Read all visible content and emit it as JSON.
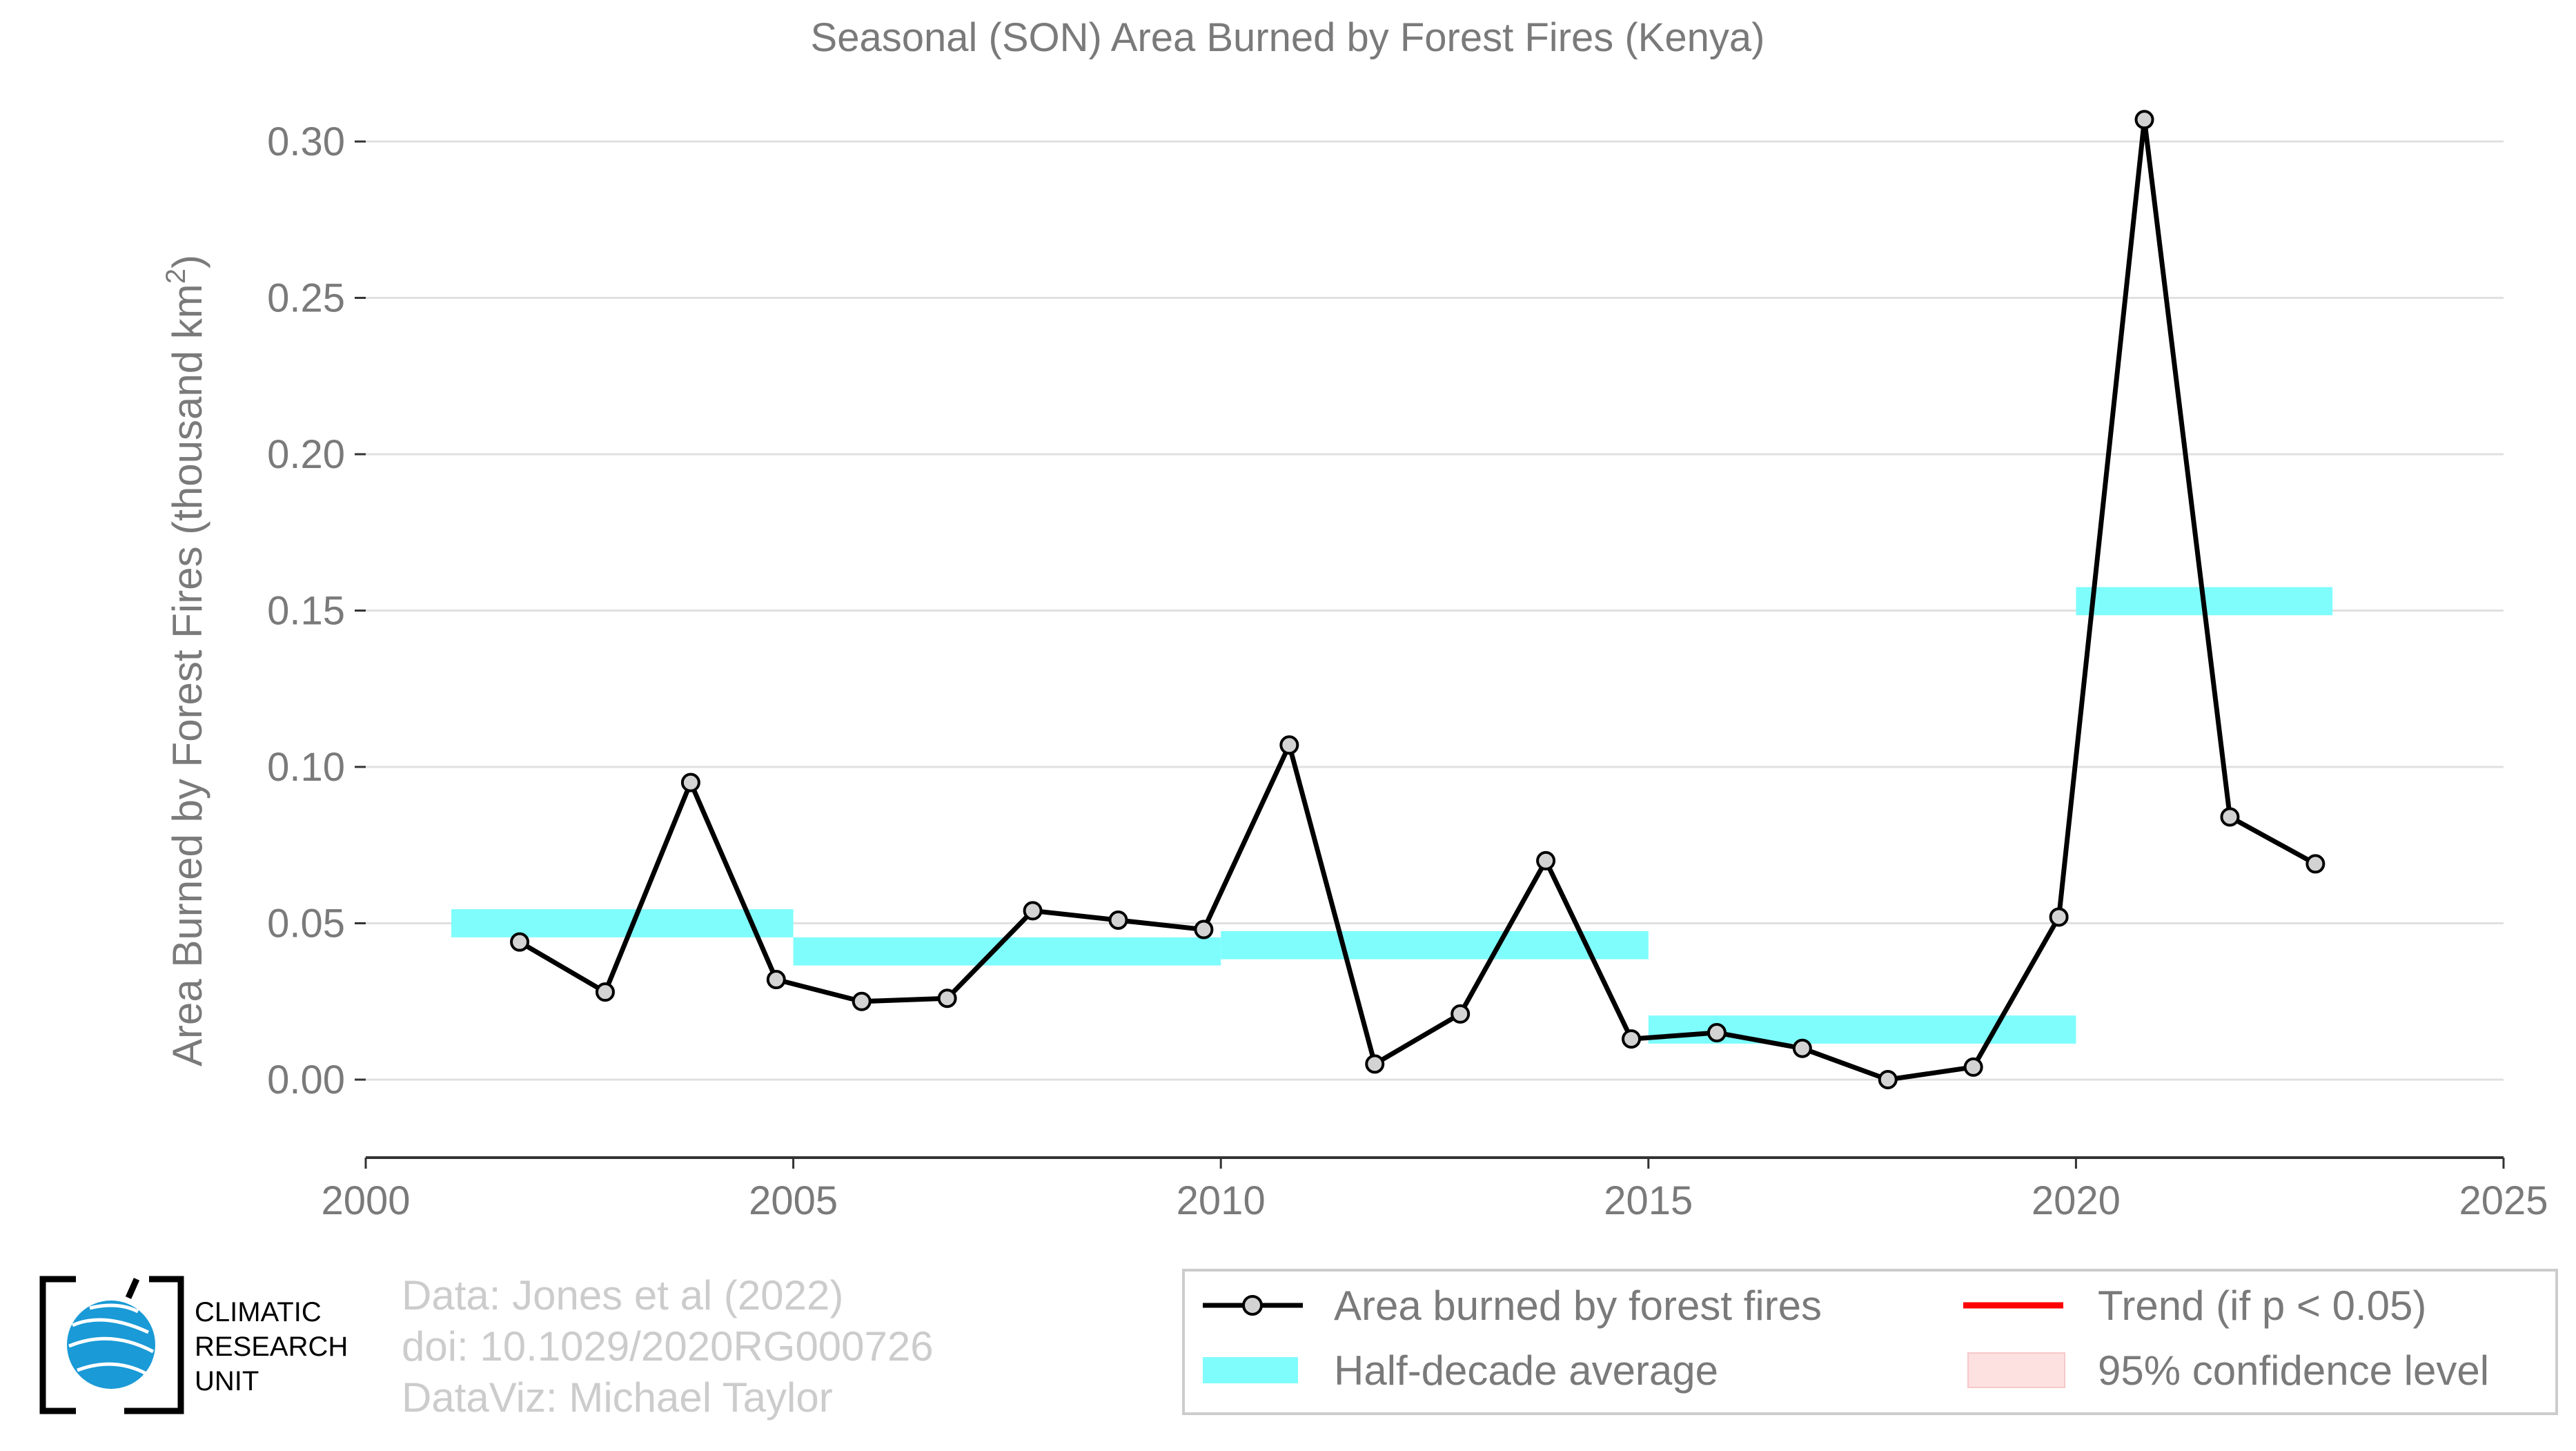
{
  "chart_data": {
    "type": "line",
    "title": "Seasonal (SON) Area Burned by Forest Fires (Kenya)",
    "ylabel": "Area Burned by Forest Fires (thousand km",
    "ylabel_sup": "2",
    "ylabel_close": ")",
    "xlabel": "",
    "xlim": [
      2000,
      2025
    ],
    "ylim": [
      -0.025,
      0.31
    ],
    "x_ticks": [
      "2000",
      "2005",
      "2010",
      "2015",
      "2020",
      "2025"
    ],
    "y_ticks": [
      "0.00",
      "0.05",
      "0.10",
      "0.15",
      "0.20",
      "0.25",
      "0.30"
    ],
    "grid": true,
    "series": [
      {
        "name": "Area burned by forest fires",
        "x": [
          2001.8,
          2002.8,
          2003.8,
          2004.8,
          2005.8,
          2006.8,
          2007.8,
          2008.8,
          2009.8,
          2010.8,
          2011.8,
          2012.8,
          2013.8,
          2014.8,
          2015.8,
          2016.8,
          2017.8,
          2018.8,
          2019.8,
          2020.8,
          2021.8,
          2022.8
        ],
        "values": [
          0.044,
          0.028,
          0.095,
          0.032,
          0.025,
          0.026,
          0.054,
          0.051,
          0.048,
          0.107,
          0.005,
          0.021,
          0.07,
          0.013,
          0.015,
          0.01,
          0.0,
          0.004,
          0.052,
          0.307,
          0.084,
          0.069
        ],
        "color": "#000000"
      }
    ],
    "half_decade_average": [
      {
        "start": 2001,
        "end": 2005,
        "value": 0.05
      },
      {
        "start": 2005,
        "end": 2010,
        "value": 0.041
      },
      {
        "start": 2010,
        "end": 2015,
        "value": 0.043
      },
      {
        "start": 2015,
        "end": 2020,
        "value": 0.016
      },
      {
        "start": 2020,
        "end": 2023,
        "value": 0.153
      }
    ],
    "legend": {
      "placement": "bottom-right",
      "items": [
        "Area burned by forest fires",
        "Half-decade average",
        "Trend (if p < 0.05)",
        "95% confidence level"
      ]
    },
    "colors": {
      "line": "#000000",
      "marker_fill": "#d3d3d3",
      "half_decade": "#7ffdfd",
      "trend": "#ff0000",
      "confidence": "#fde0e0",
      "axis_text": "#7a7a7a",
      "grid": "#e0e0e0"
    }
  },
  "credits": {
    "line1": "Data: Jones et al (2022)",
    "line2": "doi: 10.1029/2020RG000726",
    "line3": "DataViz: Michael Taylor"
  },
  "logo": {
    "line1": "CLIMATIC",
    "line2": "RESEARCH",
    "line3": "UNIT"
  }
}
